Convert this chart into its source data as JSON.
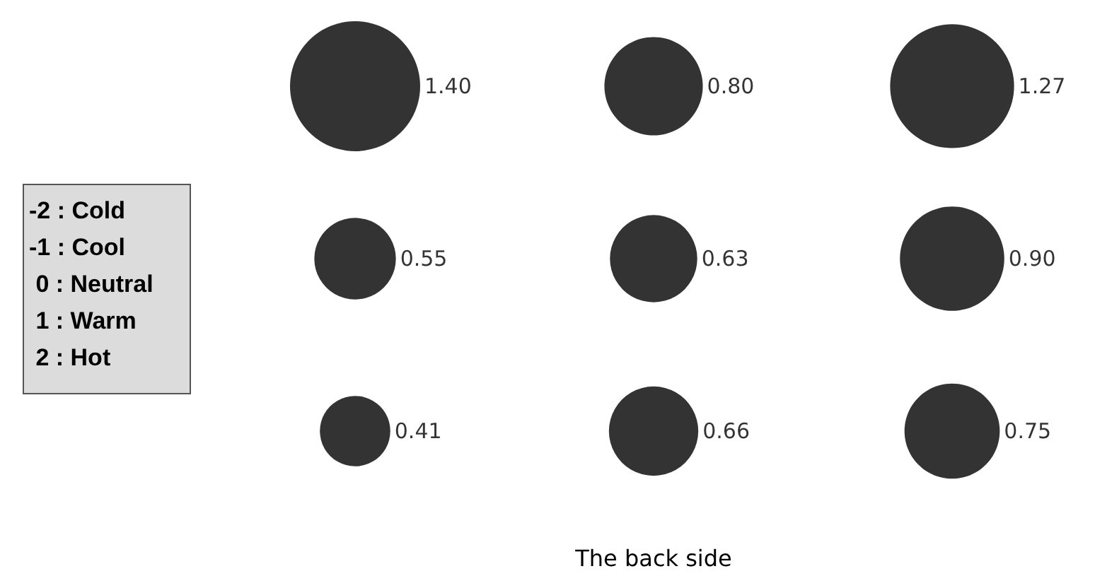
{
  "chart_data": {
    "type": "other",
    "xlabel": "The back side",
    "color": "#000000",
    "values": [
      1.4,
      0.8,
      1.27,
      0.55,
      0.63,
      0.9,
      0.41,
      0.66,
      0.75
    ],
    "value_labels": [
      "1.40",
      "0.80",
      "1.27",
      "0.55",
      "0.63",
      "0.90",
      "0.41",
      "0.66",
      "0.75"
    ],
    "annotations": [
      "-2 : Cold",
      "-1 : Cool",
      " 0 : Neutral",
      " 1 : Warm",
      " 2 : Hot"
    ]
  }
}
